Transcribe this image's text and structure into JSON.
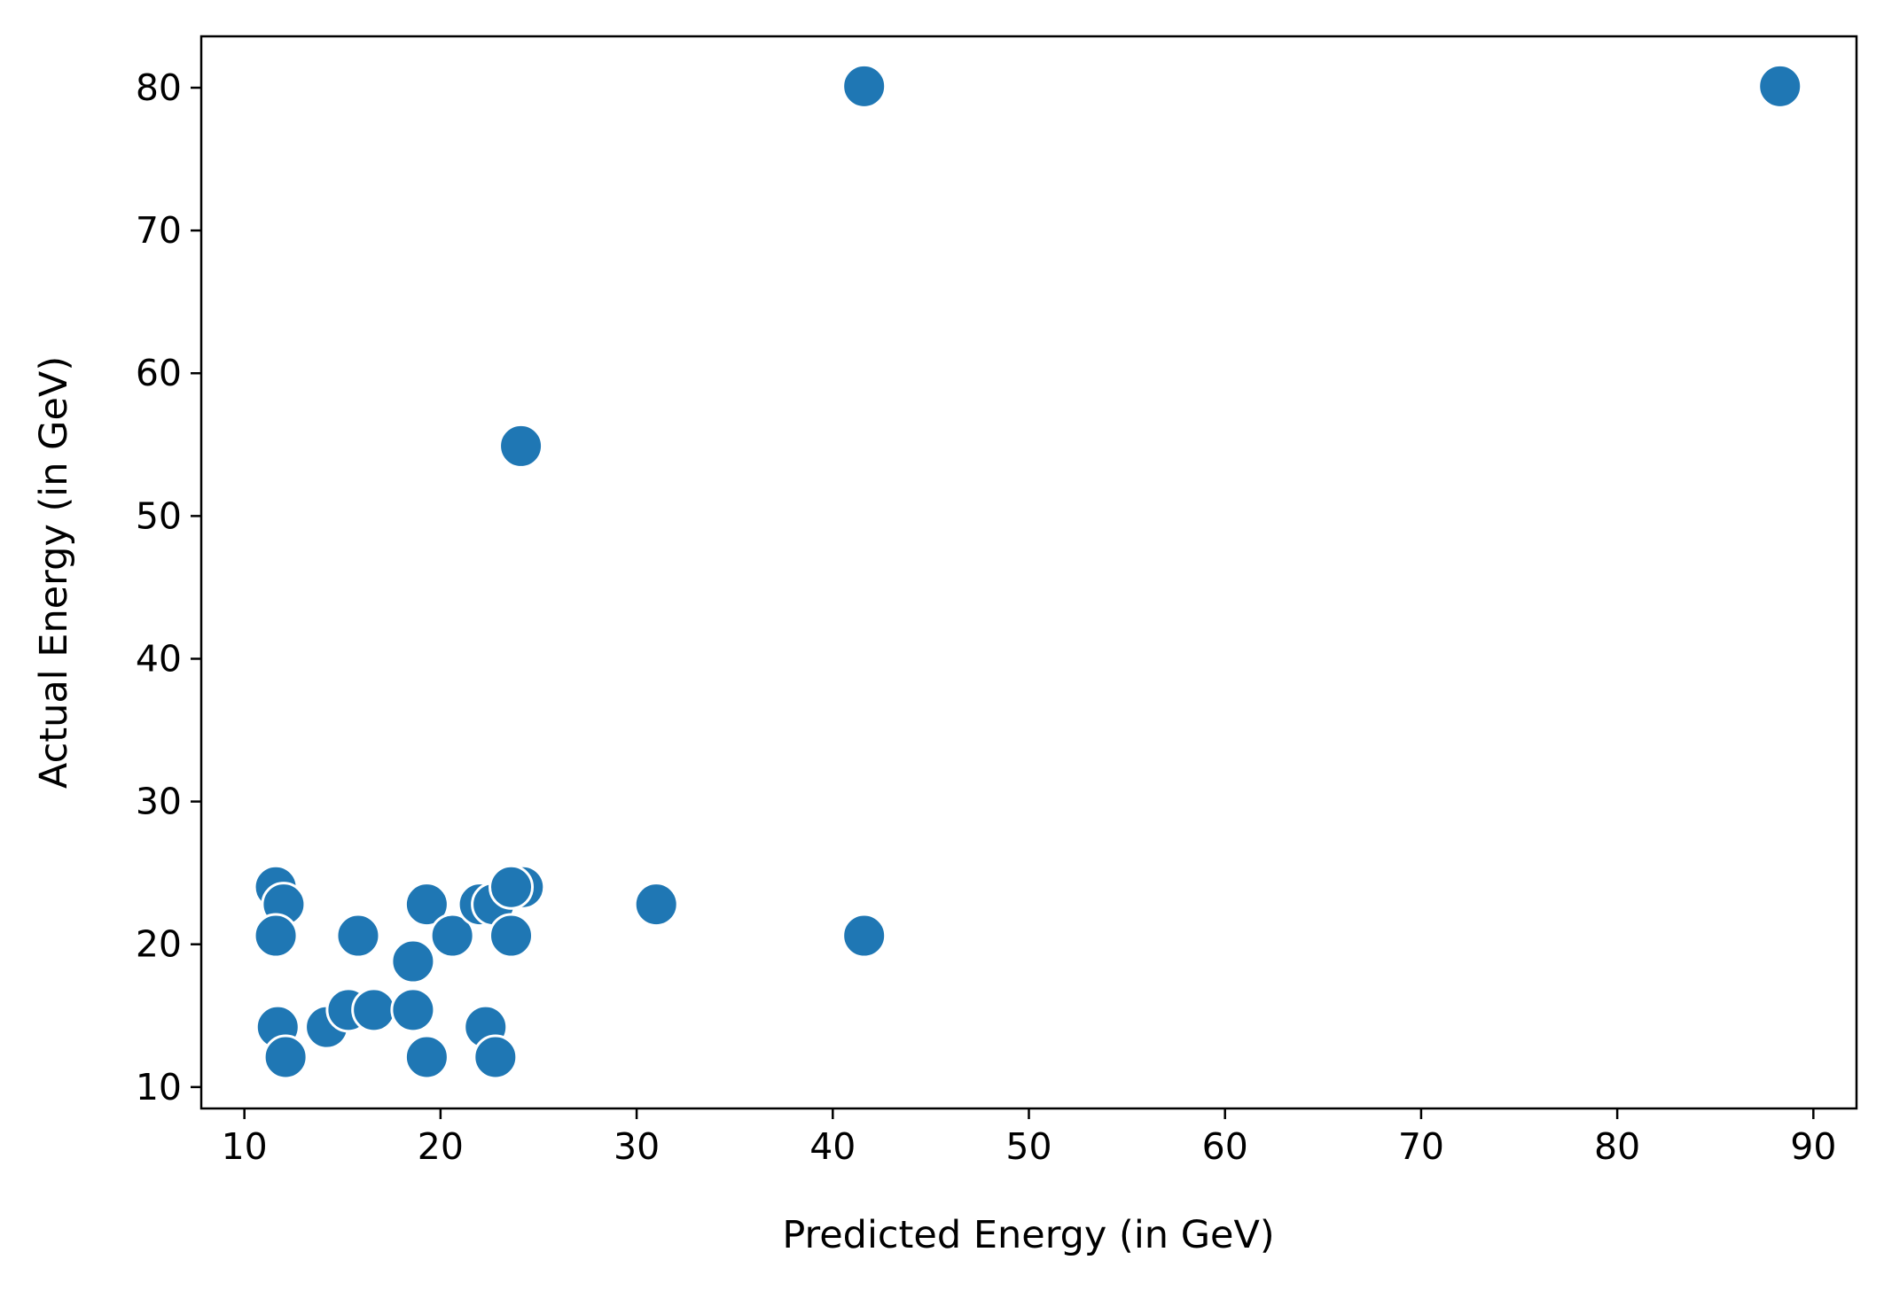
{
  "chart_data": {
    "type": "scatter",
    "title": "",
    "xlabel": "Predicted Energy (in GeV)",
    "ylabel": "Actual Energy (in GeV)",
    "xlim": [
      7.8,
      92.2
    ],
    "ylim": [
      8.5,
      83.6
    ],
    "xticks": [
      10,
      20,
      30,
      40,
      50,
      60,
      70,
      80,
      90
    ],
    "yticks": [
      10,
      20,
      30,
      40,
      50,
      60,
      70,
      80
    ],
    "grid": false,
    "marker_color": "#1f77b4",
    "marker_edge_color": "#ffffff",
    "points": [
      {
        "x": 41.6,
        "y": 80.1
      },
      {
        "x": 88.3,
        "y": 80.1
      },
      {
        "x": 24.1,
        "y": 54.9
      },
      {
        "x": 11.6,
        "y": 24.0
      },
      {
        "x": 12.0,
        "y": 22.8
      },
      {
        "x": 11.6,
        "y": 20.6
      },
      {
        "x": 15.8,
        "y": 20.6
      },
      {
        "x": 19.3,
        "y": 22.8
      },
      {
        "x": 20.6,
        "y": 20.6
      },
      {
        "x": 18.6,
        "y": 18.8
      },
      {
        "x": 22.0,
        "y": 22.8
      },
      {
        "x": 22.7,
        "y": 22.8
      },
      {
        "x": 24.2,
        "y": 24.0
      },
      {
        "x": 23.6,
        "y": 24.0
      },
      {
        "x": 23.6,
        "y": 20.6
      },
      {
        "x": 31.0,
        "y": 22.8
      },
      {
        "x": 41.6,
        "y": 20.6
      },
      {
        "x": 11.7,
        "y": 14.2
      },
      {
        "x": 12.1,
        "y": 12.1
      },
      {
        "x": 14.2,
        "y": 14.2
      },
      {
        "x": 15.3,
        "y": 15.4
      },
      {
        "x": 16.6,
        "y": 15.4
      },
      {
        "x": 18.6,
        "y": 15.4
      },
      {
        "x": 19.3,
        "y": 12.1
      },
      {
        "x": 22.3,
        "y": 14.2
      },
      {
        "x": 22.8,
        "y": 12.1
      }
    ]
  }
}
